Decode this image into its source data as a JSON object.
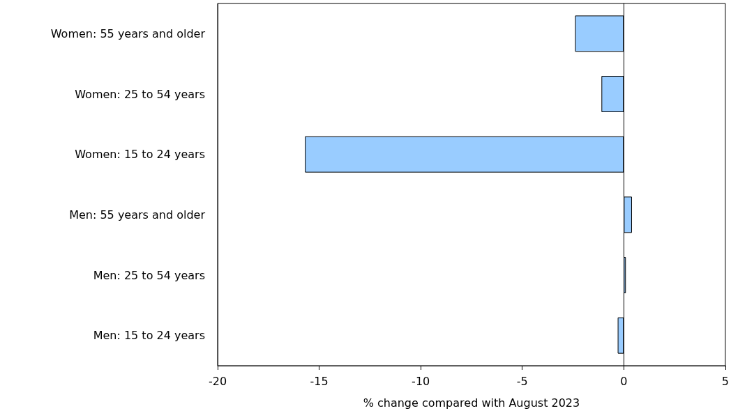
{
  "chart_data": {
    "type": "bar",
    "orientation": "horizontal",
    "xlabel": "% change compared with August 2023",
    "categories": [
      "Women: 55 years and older",
      "Women: 25 to 54 years",
      "Women: 15 to 24 years",
      "Men: 55 years and older",
      "Men: 25 to 54 years",
      "Men: 15 to 24 years"
    ],
    "values": [
      -2.4,
      -1.1,
      -15.7,
      0.4,
      0.1,
      -0.3
    ],
    "color": "#99ccff",
    "xlim": [
      -20,
      5
    ],
    "xticks": [
      -20,
      -15,
      -10,
      -5,
      0,
      5
    ]
  }
}
